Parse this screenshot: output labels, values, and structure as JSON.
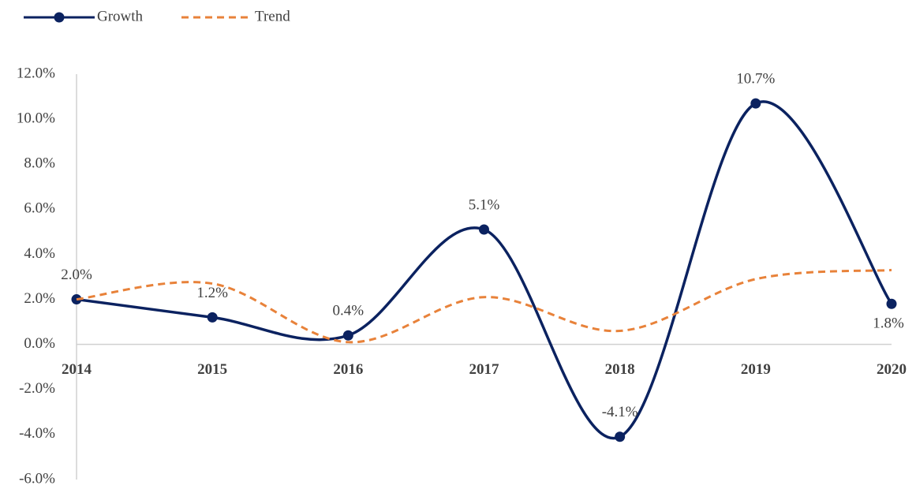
{
  "chart_data": {
    "type": "line",
    "categories": [
      "2014",
      "2015",
      "2016",
      "2017",
      "2018",
      "2019",
      "2020"
    ],
    "series": [
      {
        "name": "Growth",
        "color": "#0b2260",
        "values": [
          2.0,
          1.2,
          0.4,
          5.1,
          -4.1,
          10.7,
          1.8
        ],
        "value_labels": [
          "2.0%",
          "1.2%",
          "0.4%",
          "5.1%",
          "-4.1%",
          "10.7%",
          "1.8%"
        ],
        "markers": true,
        "dashed": false
      },
      {
        "name": "Trend",
        "color": "#e8823a",
        "values": [
          2.0,
          2.7,
          0.1,
          2.1,
          0.6,
          2.9,
          3.3
        ],
        "markers": false,
        "dashed": true
      }
    ],
    "ylim": [
      -6,
      12
    ],
    "yticks": [
      {
        "value": -6,
        "label": "-6.0%"
      },
      {
        "value": -4,
        "label": "-4.0%"
      },
      {
        "value": -2,
        "label": "-2.0%"
      },
      {
        "value": 0,
        "label": "0.0%"
      },
      {
        "value": 2,
        "label": "2.0%"
      },
      {
        "value": 4,
        "label": "4.0%"
      },
      {
        "value": 6,
        "label": "6.0%"
      },
      {
        "value": 8,
        "label": "8.0%"
      },
      {
        "value": 10,
        "label": "10.0%"
      },
      {
        "value": 12,
        "label": "12.0%"
      }
    ],
    "legend": "top-left",
    "smooth": true
  }
}
